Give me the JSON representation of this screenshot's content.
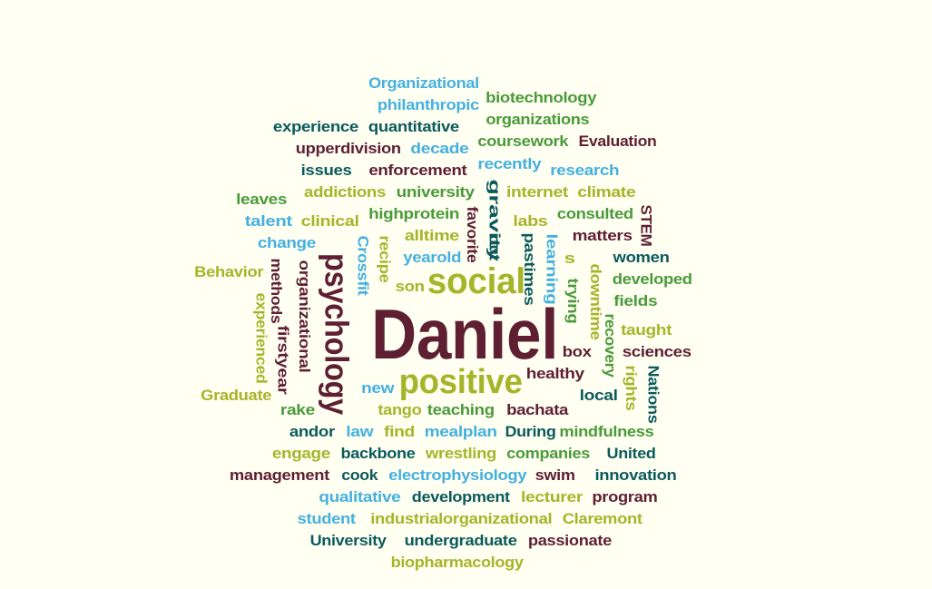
{
  "palette": {
    "maroon": "#5e1f33",
    "teal": "#0b5a5c",
    "green": "#4a9a3a",
    "olive": "#a5b52a",
    "sky": "#45b0e0"
  },
  "words": [
    {
      "text": "Daniel",
      "color": "maroon"
    },
    {
      "text": "social",
      "color": "olive"
    },
    {
      "text": "positive",
      "color": "olive"
    },
    {
      "text": "psychology",
      "color": "maroon"
    },
    {
      "text": "Organizational",
      "color": "sky"
    },
    {
      "text": "philanthropic",
      "color": "sky"
    },
    {
      "text": "biotechnology",
      "color": "green"
    },
    {
      "text": "experience",
      "color": "teal"
    },
    {
      "text": "quantitative",
      "color": "teal"
    },
    {
      "text": "organizations",
      "color": "green"
    },
    {
      "text": "upperdivision",
      "color": "maroon"
    },
    {
      "text": "decade",
      "color": "sky"
    },
    {
      "text": "coursework",
      "color": "green"
    },
    {
      "text": "Evaluation",
      "color": "maroon"
    },
    {
      "text": "issues",
      "color": "teal"
    },
    {
      "text": "enforcement",
      "color": "maroon"
    },
    {
      "text": "recently",
      "color": "sky"
    },
    {
      "text": "research",
      "color": "sky"
    },
    {
      "text": "leaves",
      "color": "green"
    },
    {
      "text": "addictions",
      "color": "olive"
    },
    {
      "text": "university",
      "color": "green"
    },
    {
      "text": "internet",
      "color": "olive"
    },
    {
      "text": "climate",
      "color": "olive"
    },
    {
      "text": "talent",
      "color": "sky"
    },
    {
      "text": "clinical",
      "color": "olive"
    },
    {
      "text": "highprotein",
      "color": "green"
    },
    {
      "text": "labs",
      "color": "olive"
    },
    {
      "text": "consulted",
      "color": "green"
    },
    {
      "text": "change",
      "color": "sky"
    },
    {
      "text": "alltime",
      "color": "olive"
    },
    {
      "text": "matters",
      "color": "maroon"
    },
    {
      "text": "yearold",
      "color": "sky"
    },
    {
      "text": "women",
      "color": "teal"
    },
    {
      "text": "Behavior",
      "color": "olive"
    },
    {
      "text": "developed",
      "color": "green"
    },
    {
      "text": "son",
      "color": "olive"
    },
    {
      "text": "fields",
      "color": "green"
    },
    {
      "text": "taught",
      "color": "olive"
    },
    {
      "text": "box",
      "color": "maroon"
    },
    {
      "text": "sciences",
      "color": "maroon"
    },
    {
      "text": "healthy",
      "color": "maroon"
    },
    {
      "text": "new",
      "color": "sky"
    },
    {
      "text": "local",
      "color": "teal"
    },
    {
      "text": "Graduate",
      "color": "olive"
    },
    {
      "text": "rake",
      "color": "green"
    },
    {
      "text": "tango",
      "color": "olive"
    },
    {
      "text": "teaching",
      "color": "green"
    },
    {
      "text": "bachata",
      "color": "maroon"
    },
    {
      "text": "andor",
      "color": "teal"
    },
    {
      "text": "law",
      "color": "sky"
    },
    {
      "text": "find",
      "color": "olive"
    },
    {
      "text": "mealplan",
      "color": "sky"
    },
    {
      "text": "During",
      "color": "teal"
    },
    {
      "text": "mindfulness",
      "color": "green"
    },
    {
      "text": "engage",
      "color": "olive"
    },
    {
      "text": "backbone",
      "color": "teal"
    },
    {
      "text": "wrestling",
      "color": "olive"
    },
    {
      "text": "companies",
      "color": "green"
    },
    {
      "text": "United",
      "color": "teal"
    },
    {
      "text": "management",
      "color": "maroon"
    },
    {
      "text": "cook",
      "color": "teal"
    },
    {
      "text": "electrophysiology",
      "color": "sky"
    },
    {
      "text": "swim",
      "color": "maroon"
    },
    {
      "text": "innovation",
      "color": "teal"
    },
    {
      "text": "qualitative",
      "color": "sky"
    },
    {
      "text": "development",
      "color": "teal"
    },
    {
      "text": "lecturer",
      "color": "olive"
    },
    {
      "text": "program",
      "color": "maroon"
    },
    {
      "text": "student",
      "color": "sky"
    },
    {
      "text": "industrialorganizational",
      "color": "olive"
    },
    {
      "text": "Claremont",
      "color": "olive"
    },
    {
      "text": "University",
      "color": "teal"
    },
    {
      "text": "undergraduate",
      "color": "teal"
    },
    {
      "text": "passionate",
      "color": "maroon"
    },
    {
      "text": "biopharmacology",
      "color": "olive"
    },
    {
      "text": "gravity",
      "color": "teal"
    },
    {
      "text": "favorite",
      "color": "maroon"
    },
    {
      "text": "out",
      "color": "teal"
    },
    {
      "text": "pastimes",
      "color": "teal"
    },
    {
      "text": "learning",
      "color": "sky"
    },
    {
      "text": "s",
      "color": "olive"
    },
    {
      "text": "trying",
      "color": "green"
    },
    {
      "text": "downtime",
      "color": "olive"
    },
    {
      "text": "recovery",
      "color": "green"
    },
    {
      "text": "rights",
      "color": "olive"
    },
    {
      "text": "Nations",
      "color": "teal"
    },
    {
      "text": "STEM",
      "color": "maroon"
    },
    {
      "text": "Crossfit",
      "color": "sky"
    },
    {
      "text": "recipe",
      "color": "olive"
    },
    {
      "text": "methods",
      "color": "maroon"
    },
    {
      "text": "organizational",
      "color": "maroon"
    },
    {
      "text": "experienced",
      "color": "olive"
    },
    {
      "text": "firstyear",
      "color": "maroon"
    }
  ]
}
